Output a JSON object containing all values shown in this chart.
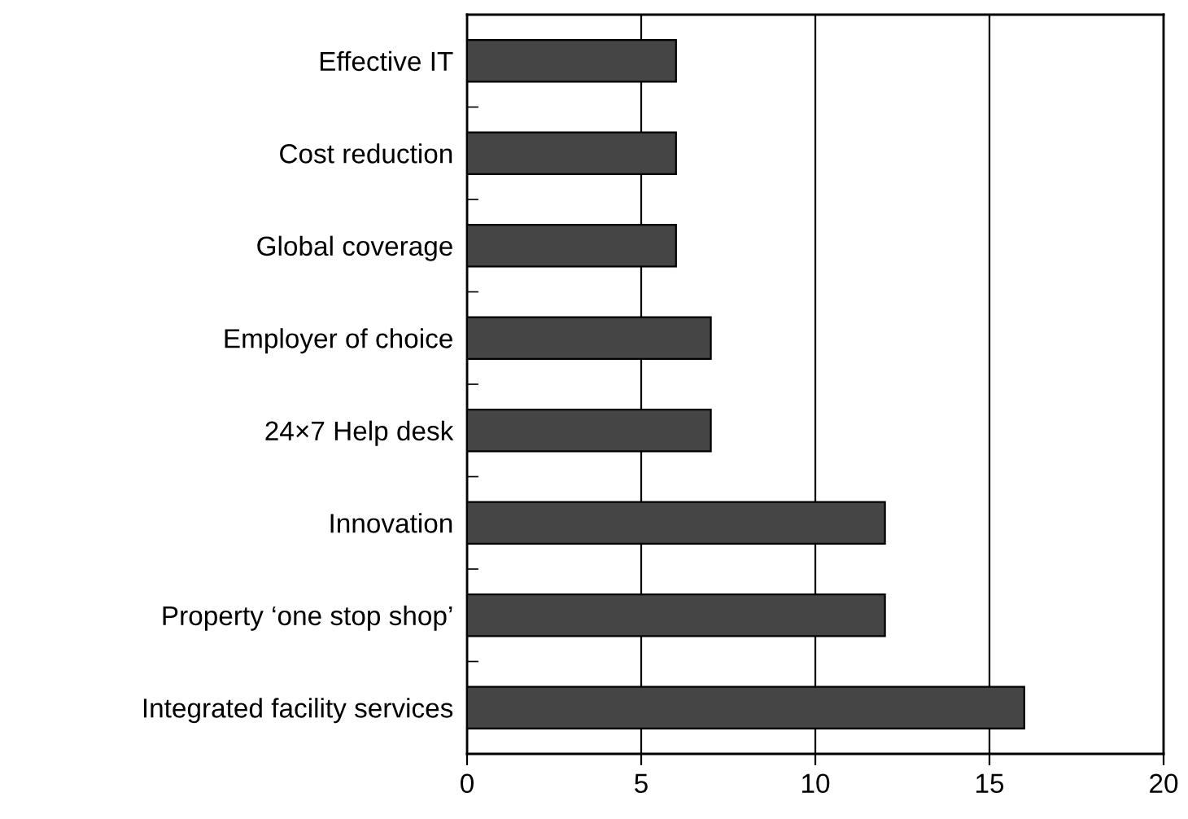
{
  "chart_data": {
    "type": "bar",
    "orientation": "horizontal",
    "categories": [
      "Effective IT",
      "Cost reduction",
      "Global coverage",
      "Employer of choice",
      "24×7 Help desk",
      "Innovation",
      "Property ‘one stop shop’",
      "Integrated facility services"
    ],
    "values": [
      6,
      6,
      6,
      7,
      7,
      12,
      12,
      16
    ],
    "color": "#454545",
    "xlim": [
      0,
      20
    ],
    "xticks": [
      0,
      5,
      10,
      15,
      20
    ],
    "grid": "x"
  }
}
